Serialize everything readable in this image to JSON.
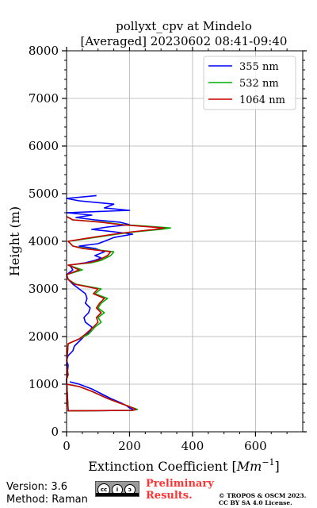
{
  "chart_data": {
    "type": "line",
    "title": "pollyxt_cpv at Mindelo",
    "subtitle": "[Averaged] 20230602 08:41-09:40",
    "xlabel": "Extinction Coefficient [",
    "xlabel_unit": "Mm",
    "xlabel_exp": "−1",
    "xlabel_close": "]",
    "ylabel": "Height (m)",
    "xlim": [
      0,
      750
    ],
    "ylim": [
      0,
      8000
    ],
    "xticks": [
      0,
      200,
      400,
      600
    ],
    "xtick_labels": [
      "0",
      "200",
      "400",
      "600"
    ],
    "yticks": [
      0,
      1000,
      2000,
      3000,
      4000,
      5000,
      6000,
      7000,
      8000
    ],
    "ytick_labels": [
      "0",
      "1000",
      "2000",
      "3000",
      "4000",
      "5000",
      "6000",
      "7000",
      "8000"
    ],
    "grid": true,
    "legend_position": "top-right",
    "series": [
      {
        "name": "355 nm",
        "color": "#0000ff",
        "points": [
          [
            10,
            1050
          ],
          [
            40,
            1000
          ],
          [
            80,
            900
          ],
          [
            110,
            800
          ],
          [
            140,
            700
          ],
          [
            175,
            600
          ],
          [
            190,
            550
          ],
          [
            200,
            500
          ],
          [
            210,
            470
          ],
          [
            205,
            450
          ],
          [
            5,
            440
          ],
          [
            0,
            1100
          ],
          [
            2,
            1200
          ],
          [
            5,
            1400
          ],
          [
            0,
            1500
          ],
          [
            5,
            1600
          ],
          [
            20,
            1700
          ],
          [
            25,
            1800
          ],
          [
            40,
            1900
          ],
          [
            55,
            2000
          ],
          [
            75,
            2100
          ],
          [
            80,
            2200
          ],
          [
            60,
            2300
          ],
          [
            55,
            2400
          ],
          [
            70,
            2500
          ],
          [
            75,
            2600
          ],
          [
            60,
            2700
          ],
          [
            65,
            2800
          ],
          [
            60,
            2900
          ],
          [
            40,
            3000
          ],
          [
            20,
            3100
          ],
          [
            5,
            3200
          ],
          [
            0,
            3300
          ],
          [
            20,
            3400
          ],
          [
            10,
            3500
          ],
          [
            60,
            3550
          ],
          [
            90,
            3600
          ],
          [
            110,
            3650
          ],
          [
            90,
            3700
          ],
          [
            120,
            3780
          ],
          [
            90,
            3850
          ],
          [
            40,
            3900
          ],
          [
            100,
            3950
          ],
          [
            120,
            4000
          ],
          [
            150,
            4080
          ],
          [
            210,
            4150
          ],
          [
            150,
            4200
          ],
          [
            80,
            4250
          ],
          [
            130,
            4300
          ],
          [
            200,
            4350
          ],
          [
            170,
            4400
          ],
          [
            90,
            4450
          ],
          [
            30,
            4500
          ],
          [
            80,
            4550
          ],
          [
            0,
            4600
          ],
          [
            200,
            4650
          ],
          [
            120,
            4700
          ],
          [
            150,
            4780
          ],
          [
            40,
            4850
          ],
          [
            0,
            4900
          ],
          [
            95,
            4960
          ]
        ]
      },
      {
        "name": "532 nm",
        "color": "#00b000",
        "points": [
          [
            0,
            1000
          ],
          [
            40,
            950
          ],
          [
            80,
            850
          ],
          [
            130,
            700
          ],
          [
            170,
            600
          ],
          [
            200,
            530
          ],
          [
            225,
            470
          ],
          [
            210,
            450
          ],
          [
            5,
            440
          ],
          [
            0,
            1100
          ],
          [
            5,
            1200
          ],
          [
            0,
            1400
          ],
          [
            5,
            1850
          ],
          [
            40,
            1950
          ],
          [
            70,
            2050
          ],
          [
            90,
            2200
          ],
          [
            110,
            2300
          ],
          [
            100,
            2400
          ],
          [
            120,
            2500
          ],
          [
            100,
            2600
          ],
          [
            110,
            2700
          ],
          [
            130,
            2800
          ],
          [
            90,
            2900
          ],
          [
            110,
            3000
          ],
          [
            30,
            3100
          ],
          [
            5,
            3200
          ],
          [
            0,
            3300
          ],
          [
            50,
            3400
          ],
          [
            5,
            3500
          ],
          [
            80,
            3550
          ],
          [
            110,
            3600
          ],
          [
            140,
            3700
          ],
          [
            150,
            3780
          ],
          [
            60,
            3850
          ],
          [
            20,
            3900
          ],
          [
            5,
            4000
          ],
          [
            60,
            4050
          ],
          [
            160,
            4150
          ],
          [
            220,
            4200
          ],
          [
            300,
            4250
          ],
          [
            330,
            4280
          ],
          [
            250,
            4320
          ],
          [
            180,
            4350
          ],
          [
            120,
            4400
          ],
          [
            20,
            4450
          ],
          [
            0,
            4520
          ]
        ]
      },
      {
        "name": "1064 nm",
        "color": "#cc0000",
        "points": [
          [
            0,
            1000
          ],
          [
            40,
            950
          ],
          [
            80,
            850
          ],
          [
            130,
            700
          ],
          [
            170,
            600
          ],
          [
            200,
            530
          ],
          [
            220,
            470
          ],
          [
            210,
            450
          ],
          [
            5,
            440
          ],
          [
            0,
            1100
          ],
          [
            5,
            1200
          ],
          [
            0,
            1400
          ],
          [
            5,
            1850
          ],
          [
            40,
            1950
          ],
          [
            60,
            2050
          ],
          [
            85,
            2200
          ],
          [
            100,
            2300
          ],
          [
            95,
            2400
          ],
          [
            110,
            2500
          ],
          [
            95,
            2600
          ],
          [
            105,
            2700
          ],
          [
            120,
            2800
          ],
          [
            85,
            2900
          ],
          [
            100,
            3000
          ],
          [
            25,
            3100
          ],
          [
            5,
            3200
          ],
          [
            0,
            3300
          ],
          [
            40,
            3400
          ],
          [
            5,
            3500
          ],
          [
            70,
            3550
          ],
          [
            100,
            3600
          ],
          [
            130,
            3700
          ],
          [
            140,
            3780
          ],
          [
            50,
            3850
          ],
          [
            20,
            3900
          ],
          [
            5,
            4000
          ],
          [
            50,
            4050
          ],
          [
            150,
            4150
          ],
          [
            210,
            4200
          ],
          [
            280,
            4250
          ],
          [
            310,
            4280
          ],
          [
            230,
            4320
          ],
          [
            170,
            4350
          ],
          [
            110,
            4400
          ],
          [
            20,
            4450
          ],
          [
            0,
            4520
          ]
        ]
      }
    ]
  },
  "footer": {
    "version": "Version: 3.6",
    "method": "Method: Raman",
    "license_badge": {
      "cc": "cc",
      "by": "i",
      "sa": "ↄ"
    },
    "preliminary_line1": "Preliminary",
    "preliminary_line2": "Results.",
    "copyright_line1": "© TROPOS & OSCM 2023.",
    "copyright_line2": "CC BY SA 4.0 License."
  }
}
